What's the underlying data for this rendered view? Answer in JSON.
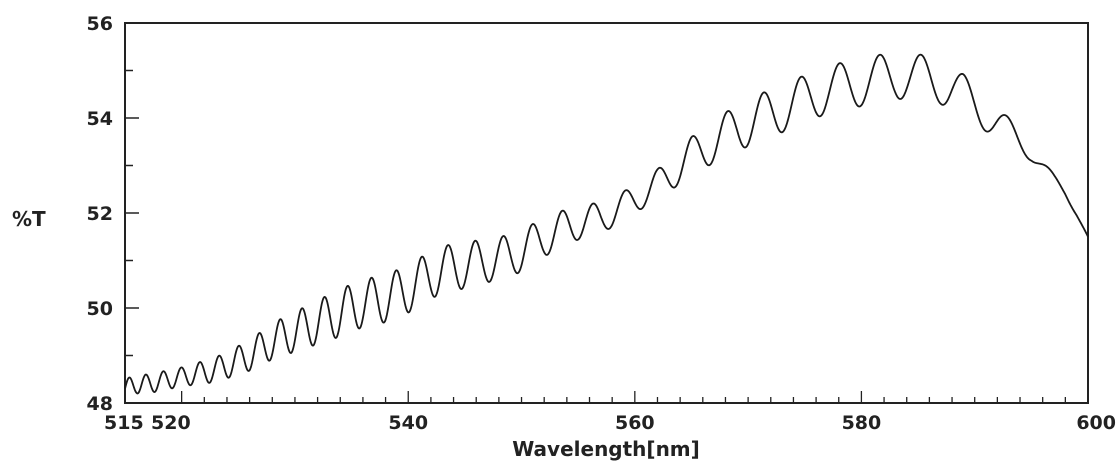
{
  "chart_data": {
    "type": "line",
    "title": "",
    "xlabel": "Wavelength[nm]",
    "ylabel": "%T",
    "xlim": [
      515,
      600
    ],
    "ylim": [
      48,
      56
    ],
    "x_ticks": [
      515,
      520,
      540,
      560,
      580,
      600
    ],
    "x_tick_labels": [
      "515",
      "520",
      "540",
      "560",
      "580",
      "600"
    ],
    "y_ticks": [
      48,
      50,
      52,
      54,
      56
    ],
    "y_tick_labels": [
      "48",
      "50",
      "52",
      "54",
      "56"
    ],
    "grid": false,
    "legend": "none",
    "line_color": "#1a1a1a",
    "series": [
      {
        "x": [
          515,
          516,
          517,
          518,
          519,
          520,
          521,
          522,
          523,
          524,
          525,
          526,
          527,
          528,
          529,
          530,
          531,
          532,
          533,
          534,
          535,
          536,
          537,
          538,
          539,
          540,
          541,
          542,
          543,
          544,
          545,
          546,
          547,
          548,
          549,
          550,
          551,
          552,
          553,
          554,
          555,
          556,
          557,
          558,
          559,
          560,
          561,
          562,
          563,
          564,
          565,
          566,
          567,
          568,
          569,
          570,
          571,
          572,
          573,
          574,
          575,
          576,
          577,
          578,
          579,
          580,
          581,
          582,
          583,
          584,
          585,
          586,
          587,
          588,
          589,
          590,
          591,
          592,
          593,
          594,
          595,
          596,
          597,
          598,
          599,
          600
        ],
        "y": [
          48.3,
          48.4,
          48.4,
          48.45,
          48.5,
          48.55,
          48.6,
          48.65,
          48.7,
          48.8,
          48.9,
          49.0,
          49.15,
          49.3,
          49.4,
          49.5,
          49.6,
          49.7,
          49.8,
          49.9,
          50.0,
          50.1,
          50.15,
          50.2,
          50.3,
          50.4,
          50.55,
          50.7,
          50.8,
          50.85,
          50.9,
          50.95,
          51.0,
          51.05,
          51.1,
          51.2,
          51.35,
          51.5,
          51.6,
          51.7,
          51.8,
          51.85,
          51.9,
          52.0,
          52.15,
          52.3,
          52.45,
          52.6,
          52.8,
          53.0,
          53.2,
          53.35,
          53.5,
          53.65,
          53.8,
          53.9,
          54.0,
          54.1,
          54.2,
          54.3,
          54.4,
          54.5,
          54.6,
          54.65,
          54.7,
          54.75,
          54.8,
          54.85,
          54.9,
          54.9,
          54.85,
          54.8,
          54.75,
          54.65,
          54.5,
          54.3,
          54.1,
          53.9,
          53.7,
          53.5,
          53.3,
          53.0,
          52.7,
          52.4,
          52.0,
          51.5
        ],
        "fringe_amplitude": [
          0.2,
          0.2,
          0.2,
          0.2,
          0.2,
          0.2,
          0.22,
          0.24,
          0.26,
          0.28,
          0.3,
          0.32,
          0.35,
          0.38,
          0.4,
          0.42,
          0.44,
          0.46,
          0.48,
          0.5,
          0.5,
          0.5,
          0.5,
          0.5,
          0.5,
          0.5,
          0.5,
          0.5,
          0.5,
          0.5,
          0.48,
          0.47,
          0.46,
          0.45,
          0.44,
          0.43,
          0.42,
          0.41,
          0.4,
          0.38,
          0.36,
          0.34,
          0.32,
          0.3,
          0.3,
          0.3,
          0.3,
          0.32,
          0.35,
          0.38,
          0.4,
          0.42,
          0.44,
          0.46,
          0.48,
          0.5,
          0.5,
          0.5,
          0.5,
          0.5,
          0.5,
          0.5,
          0.5,
          0.5,
          0.5,
          0.5,
          0.5,
          0.5,
          0.5,
          0.5,
          0.5,
          0.48,
          0.46,
          0.44,
          0.42,
          0.4,
          0.38,
          0.35,
          0.3,
          0.25,
          0.2,
          0.15,
          0.1,
          0.08,
          0.05,
          0.0
        ]
      }
    ]
  }
}
